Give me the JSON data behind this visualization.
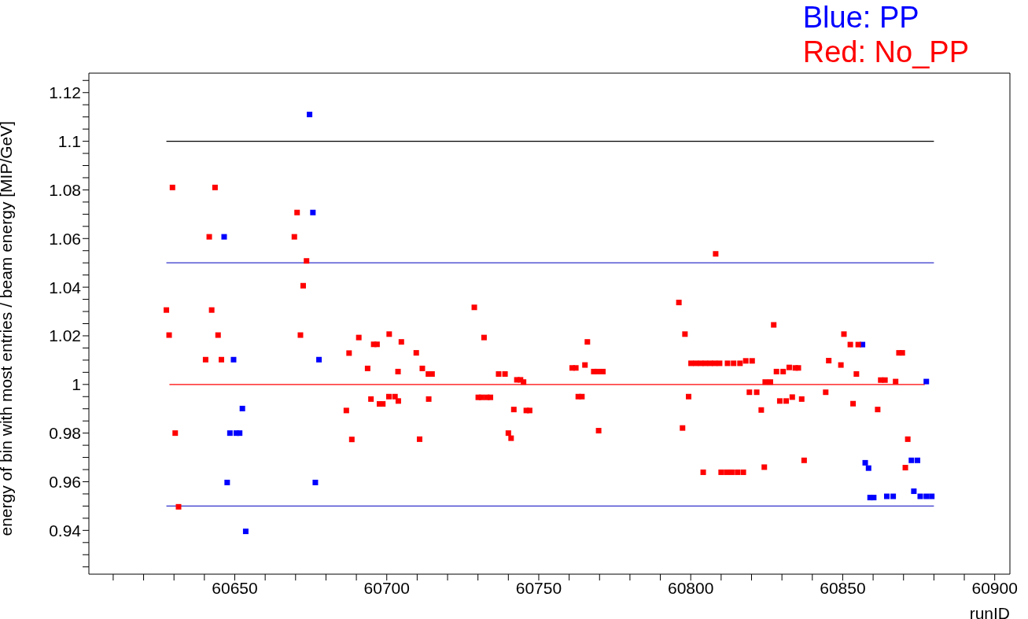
{
  "chart_data": {
    "type": "scatter",
    "xlabel": "runID",
    "ylabel": "energy of bin with most entries / beam energy [MIP/GeV]",
    "marker": "square",
    "legend": "top right",
    "grid": false,
    "xlim": [
      60602,
      60905
    ],
    "ylim": [
      0.922,
      1.128
    ],
    "xticks": [
      {
        "value": 60610,
        "label": null
      },
      {
        "value": 60620,
        "label": null
      },
      {
        "value": 60630,
        "label": null
      },
      {
        "value": 60640,
        "label": null
      },
      60650,
      {
        "value": 60660,
        "label": null
      },
      {
        "value": 60670,
        "label": null
      },
      {
        "value": 60680,
        "label": null
      },
      {
        "value": 60690,
        "label": null
      },
      60700,
      {
        "value": 60710,
        "label": null
      },
      {
        "value": 60720,
        "label": null
      },
      {
        "value": 60730,
        "label": null
      },
      {
        "value": 60740,
        "label": null
      },
      60750,
      {
        "value": 60760,
        "label": null
      },
      {
        "value": 60770,
        "label": null
      },
      {
        "value": 60780,
        "label": null
      },
      {
        "value": 60790,
        "label": null
      },
      60800,
      {
        "value": 60810,
        "label": null
      },
      {
        "value": 60820,
        "label": null
      },
      {
        "value": 60830,
        "label": null
      },
      {
        "value": 60840,
        "label": null
      },
      60850,
      {
        "value": 60860,
        "label": null
      },
      {
        "value": 60870,
        "label": null
      },
      {
        "value": 60880,
        "label": null
      },
      {
        "value": 60890,
        "label": null
      },
      60900
    ],
    "yticks": [
      {
        "value": 0.925,
        "label": null
      },
      {
        "value": 0.93,
        "label": null
      },
      {
        "value": 0.935,
        "label": null
      },
      0.94,
      {
        "value": 0.945,
        "label": null
      },
      {
        "value": 0.95,
        "label": null
      },
      {
        "value": 0.955,
        "label": null
      },
      0.96,
      {
        "value": 0.965,
        "label": null
      },
      {
        "value": 0.97,
        "label": null
      },
      {
        "value": 0.975,
        "label": null
      },
      0.98,
      {
        "value": 0.985,
        "label": null
      },
      {
        "value": 0.99,
        "label": null
      },
      {
        "value": 0.995,
        "label": null
      },
      1,
      {
        "value": 1.005,
        "label": null
      },
      {
        "value": 1.01,
        "label": null
      },
      {
        "value": 1.015,
        "label": null
      },
      1.02,
      {
        "value": 1.025,
        "label": null
      },
      {
        "value": 1.03,
        "label": null
      },
      {
        "value": 1.035,
        "label": null
      },
      1.04,
      {
        "value": 1.045,
        "label": null
      },
      {
        "value": 1.05,
        "label": null
      },
      {
        "value": 1.055,
        "label": null
      },
      1.06,
      {
        "value": 1.065,
        "label": null
      },
      {
        "value": 1.07,
        "label": null
      },
      {
        "value": 1.075,
        "label": null
      },
      1.08,
      {
        "value": 1.085,
        "label": null
      },
      {
        "value": 1.09,
        "label": null
      },
      {
        "value": 1.095,
        "label": null
      },
      1.1,
      {
        "value": 1.105,
        "label": null
      },
      {
        "value": 1.11,
        "label": null
      },
      {
        "value": 1.115,
        "label": null
      },
      1.12,
      {
        "value": 1.125,
        "label": null
      }
    ],
    "series": [
      {
        "type": "line",
        "color": "#000000",
        "line_style": "solid",
        "marker": "none",
        "x": [
          60627.5,
          60880
        ],
        "values": [
          1.1,
          1.1
        ]
      },
      {
        "type": "line",
        "color": "#3333cc",
        "line_style": "solid",
        "marker": "none",
        "x": [
          60627.5,
          60880
        ],
        "values": [
          1.05,
          1.05
        ]
      },
      {
        "type": "line",
        "color": "#3333cc",
        "line_style": "solid",
        "marker": "none",
        "x": [
          60627.5,
          60880
        ],
        "values": [
          0.95,
          0.95
        ]
      },
      {
        "type": "line",
        "color": "#ff0000",
        "line_style": "solid",
        "marker": "none",
        "x": [
          60628.5,
          60877
        ],
        "values": [
          1,
          1
        ]
      },
      {
        "name": "Blue: PP",
        "color": "#0000ff",
        "x": [
          60674.6,
          60675.7,
          60646.5,
          60649.6,
          60677.7,
          60652.5,
          60648.4,
          60650.5,
          60651.6,
          60647.5,
          60676.5,
          60653.6,
          60856.5,
          60877.5,
          60857.4,
          60858.5,
          60872.6,
          60874.6,
          60873.4,
          60859,
          60860.2,
          60864.5,
          60866.6,
          60875.5,
          60877.5,
          60879.3
        ],
        "values": [
          1.111,
          1.0707,
          1.0607,
          1.0102,
          1.0102,
          0.9901,
          0.98,
          0.98,
          0.98,
          0.9597,
          0.9597,
          0.9396,
          1.0164,
          1.0012,
          0.9678,
          0.9656,
          0.9688,
          0.9688,
          0.9561,
          0.9535,
          0.9535,
          0.954,
          0.954,
          0.954,
          0.954,
          0.954
        ]
      },
      {
        "name": "Red: No_PP",
        "color": "#ff0000",
        "x": [
          60629.5,
          60643.5,
          60670.5,
          60641.6,
          60669.6,
          60673.6,
          60672.5,
          60627.5,
          60642.4,
          60628.4,
          60644.5,
          60671.6,
          60640.4,
          60645.6,
          60687.6,
          60686.7,
          60630.4,
          60688.5,
          60631.5,
          60690.8,
          60693.7,
          60695.7,
          60696.8,
          60700.8,
          60704.8,
          60703.7,
          60709.7,
          60711.7,
          60713.7,
          60714.9,
          60728.8,
          60732,
          60736.8,
          60738.9,
          60742.8,
          60744,
          60745,
          60694.8,
          60697.6,
          60698.7,
          60700.7,
          60702.7,
          60703.8,
          60713.8,
          60710.8,
          60730.1,
          60731.2,
          60732.9,
          60734.1,
          60741.8,
          60745.9,
          60747,
          60740,
          60740.9,
          60766,
          60761,
          60762.2,
          60765.2,
          60768.1,
          60769.3,
          60771.1,
          60763,
          60764.2,
          60769.7,
          60796.1,
          60798.1,
          60799.3,
          60797.3,
          60808.2,
          60827.3,
          60800.1,
          60801.7,
          60803.3,
          60804.8,
          60806.4,
          60807.9,
          60809.5,
          60812.1,
          60814.1,
          60816.2,
          60818.1,
          60820.2,
          60819.3,
          60821.7,
          60823.2,
          60824.5,
          60826.2,
          60828.2,
          60830.4,
          60832.4,
          60834.4,
          60835.4,
          60829.3,
          60831.4,
          60833.4,
          60836.5,
          60844.4,
          60845.4,
          60837.3,
          60824.2,
          60804.1,
          60810,
          60811.8,
          60813.5,
          60815.4,
          60817.3,
          60850.4,
          60852.5,
          60855.1,
          60868.5,
          60869.6,
          60849.4,
          60854.5,
          60862.5,
          60863.9,
          60867.4,
          60853.4,
          60861.5,
          60871.4,
          60870.6
        ],
        "values": [
          1.081,
          1.081,
          1.0707,
          1.0607,
          1.0607,
          1.0508,
          1.0406,
          1.0306,
          1.0306,
          1.0203,
          1.0203,
          1.0203,
          1.0102,
          1.0102,
          1.0129,
          0.9893,
          0.98,
          0.9774,
          0.9497,
          1.0193,
          1.0066,
          1.0165,
          1.0165,
          1.0207,
          1.0175,
          1.0053,
          1.013,
          1.0066,
          1.0043,
          1.0043,
          1.0317,
          1.0193,
          1.0043,
          1.0043,
          1.0019,
          1.0019,
          1.001,
          0.994,
          0.992,
          0.992,
          0.995,
          0.995,
          0.9932,
          0.994,
          0.9775,
          0.9947,
          0.9947,
          0.9947,
          0.9947,
          0.9897,
          0.9893,
          0.9893,
          0.98,
          0.9779,
          1.0175,
          1.0068,
          1.0068,
          1.008,
          1.0053,
          1.0053,
          1.0053,
          0.995,
          0.995,
          0.981,
          1.0337,
          1.0207,
          0.995,
          0.9821,
          1.0537,
          1.0245,
          1.0087,
          1.0087,
          1.0087,
          1.0087,
          1.0087,
          1.0087,
          1.0087,
          1.0087,
          1.0087,
          1.0087,
          1.0097,
          1.0097,
          0.9968,
          0.9968,
          0.9895,
          1.001,
          1.001,
          1.0053,
          1.0053,
          1.007,
          1.0068,
          1.0068,
          0.9932,
          0.9932,
          0.9948,
          0.994,
          0.9968,
          1.0098,
          0.9688,
          0.966,
          0.9639,
          0.9639,
          0.9639,
          0.9639,
          0.9639,
          0.9639,
          1.0207,
          1.0164,
          1.0164,
          1.013,
          1.013,
          1.008,
          1.0043,
          1.0018,
          1.0018,
          1.0012,
          0.9921,
          0.9897,
          0.9775,
          0.9658
        ]
      }
    ]
  }
}
